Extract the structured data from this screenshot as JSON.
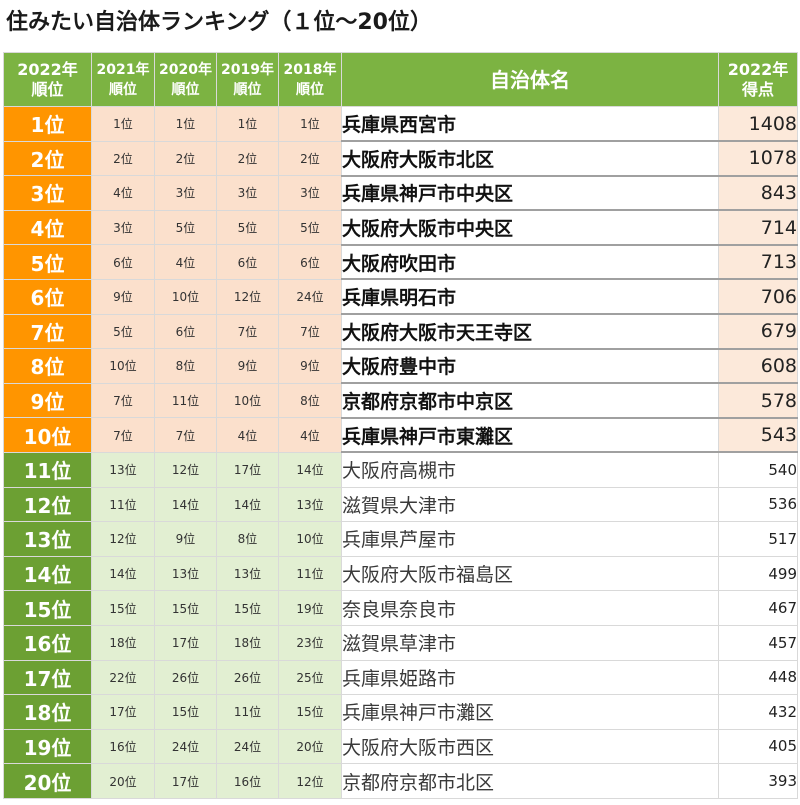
{
  "title": "住みたい自治体ランキング（１位～20位）",
  "headers": {
    "rank_2022": [
      "2022年",
      "順位"
    ],
    "rank_2021": [
      "2021年",
      "順位"
    ],
    "rank_2020": [
      "2020年",
      "順位"
    ],
    "rank_2019": [
      "2019年",
      "順位"
    ],
    "rank_2018": [
      "2018年",
      "順位"
    ],
    "name": "自治体名",
    "score_2022": [
      "2022年",
      "得点"
    ]
  },
  "colors": {
    "header_green": "#7cb342",
    "top_rank_orange": "#ff9500",
    "rest_rank_green": "#6ca033",
    "top_history_bg": "#fbe0cc",
    "rest_history_bg": "#e2efd2"
  },
  "rows": [
    {
      "rank": "1位",
      "r2021": "1位",
      "r2020": "1位",
      "r2019": "1位",
      "r2018": "1位",
      "name": "兵庫県西宮市",
      "score": "1408",
      "group": "top"
    },
    {
      "rank": "2位",
      "r2021": "2位",
      "r2020": "2位",
      "r2019": "2位",
      "r2018": "2位",
      "name": "大阪府大阪市北区",
      "score": "1078",
      "group": "top"
    },
    {
      "rank": "3位",
      "r2021": "4位",
      "r2020": "3位",
      "r2019": "3位",
      "r2018": "3位",
      "name": "兵庫県神戸市中央区",
      "score": "843",
      "group": "top"
    },
    {
      "rank": "4位",
      "r2021": "3位",
      "r2020": "5位",
      "r2019": "5位",
      "r2018": "5位",
      "name": "大阪府大阪市中央区",
      "score": "714",
      "group": "top"
    },
    {
      "rank": "5位",
      "r2021": "6位",
      "r2020": "4位",
      "r2019": "6位",
      "r2018": "6位",
      "name": "大阪府吹田市",
      "score": "713",
      "group": "top"
    },
    {
      "rank": "6位",
      "r2021": "9位",
      "r2020": "10位",
      "r2019": "12位",
      "r2018": "24位",
      "name": "兵庫県明石市",
      "score": "706",
      "group": "top"
    },
    {
      "rank": "7位",
      "r2021": "5位",
      "r2020": "6位",
      "r2019": "7位",
      "r2018": "7位",
      "name": "大阪府大阪市天王寺区",
      "score": "679",
      "group": "top"
    },
    {
      "rank": "8位",
      "r2021": "10位",
      "r2020": "8位",
      "r2019": "9位",
      "r2018": "9位",
      "name": "大阪府豊中市",
      "score": "608",
      "group": "top"
    },
    {
      "rank": "9位",
      "r2021": "7位",
      "r2020": "11位",
      "r2019": "10位",
      "r2018": "8位",
      "name": "京都府京都市中京区",
      "score": "578",
      "group": "top"
    },
    {
      "rank": "10位",
      "r2021": "7位",
      "r2020": "7位",
      "r2019": "4位",
      "r2018": "4位",
      "name": "兵庫県神戸市東灘区",
      "score": "543",
      "group": "top"
    },
    {
      "rank": "11位",
      "r2021": "13位",
      "r2020": "12位",
      "r2019": "17位",
      "r2018": "14位",
      "name": "大阪府高槻市",
      "score": "540",
      "group": "rest"
    },
    {
      "rank": "12位",
      "r2021": "11位",
      "r2020": "14位",
      "r2019": "14位",
      "r2018": "13位",
      "name": "滋賀県大津市",
      "score": "536",
      "group": "rest"
    },
    {
      "rank": "13位",
      "r2021": "12位",
      "r2020": "9位",
      "r2019": "8位",
      "r2018": "10位",
      "name": "兵庫県芦屋市",
      "score": "517",
      "group": "rest"
    },
    {
      "rank": "14位",
      "r2021": "14位",
      "r2020": "13位",
      "r2019": "13位",
      "r2018": "11位",
      "name": "大阪府大阪市福島区",
      "score": "499",
      "group": "rest"
    },
    {
      "rank": "15位",
      "r2021": "15位",
      "r2020": "15位",
      "r2019": "15位",
      "r2018": "19位",
      "name": "奈良県奈良市",
      "score": "467",
      "group": "rest"
    },
    {
      "rank": "16位",
      "r2021": "18位",
      "r2020": "17位",
      "r2019": "18位",
      "r2018": "23位",
      "name": "滋賀県草津市",
      "score": "457",
      "group": "rest"
    },
    {
      "rank": "17位",
      "r2021": "22位",
      "r2020": "26位",
      "r2019": "26位",
      "r2018": "25位",
      "name": "兵庫県姫路市",
      "score": "448",
      "group": "rest"
    },
    {
      "rank": "18位",
      "r2021": "17位",
      "r2020": "15位",
      "r2019": "11位",
      "r2018": "15位",
      "name": "兵庫県神戸市灘区",
      "score": "432",
      "group": "rest"
    },
    {
      "rank": "19位",
      "r2021": "16位",
      "r2020": "24位",
      "r2019": "24位",
      "r2018": "20位",
      "name": "大阪府大阪市西区",
      "score": "405",
      "group": "rest"
    },
    {
      "rank": "20位",
      "r2021": "20位",
      "r2020": "17位",
      "r2019": "16位",
      "r2018": "12位",
      "name": "京都府京都市北区",
      "score": "393",
      "group": "rest"
    }
  ]
}
